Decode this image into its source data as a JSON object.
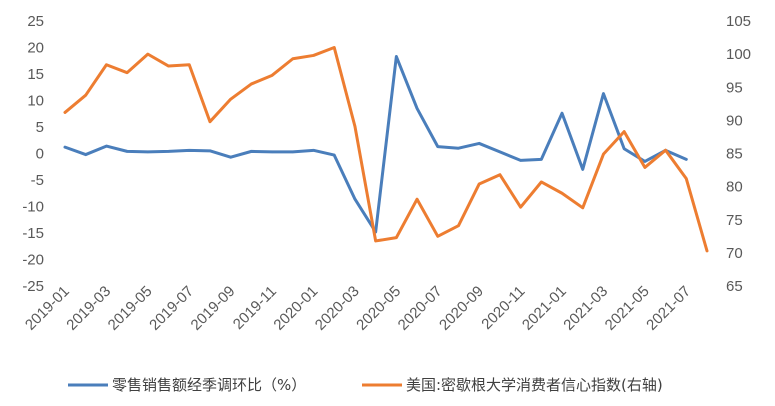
{
  "colors": {
    "series_left": "#4A7EBB",
    "series_right": "#ED7D31",
    "tick_text": "#595959",
    "legend_text": "#404040"
  },
  "chart_data": {
    "type": "line",
    "x": [
      "2019-01",
      "2019-02",
      "2019-03",
      "2019-04",
      "2019-05",
      "2019-06",
      "2019-07",
      "2019-08",
      "2019-09",
      "2019-10",
      "2019-11",
      "2019-12",
      "2020-01",
      "2020-02",
      "2020-03",
      "2020-04",
      "2020-05",
      "2020-06",
      "2020-07",
      "2020-08",
      "2020-09",
      "2020-10",
      "2020-11",
      "2020-12",
      "2021-01",
      "2021-02",
      "2021-03",
      "2021-04",
      "2021-05",
      "2021-06",
      "2021-07",
      "2021-08"
    ],
    "x_tick_labels": [
      "2019-01",
      "2019-03",
      "2019-05",
      "2019-07",
      "2019-09",
      "2019-11",
      "2020-01",
      "2020-03",
      "2020-05",
      "2020-07",
      "2020-09",
      "2020-11",
      "2021-01",
      "2021-03",
      "2021-05",
      "2021-07"
    ],
    "y_left": {
      "min": -25,
      "max": 25,
      "step": 5,
      "ticks": [
        "25",
        "20",
        "15",
        "10",
        "5",
        "0",
        "-5",
        "-10",
        "-15",
        "-20",
        "-25"
      ]
    },
    "y_right": {
      "min": 65,
      "max": 105,
      "step": 5,
      "ticks": [
        "105",
        "100",
        "95",
        "90",
        "85",
        "80",
        "75",
        "70",
        "65"
      ]
    },
    "series": [
      {
        "name": "零售销售额经季调环比（%）",
        "axis": "left",
        "values": [
          1.2,
          -0.2,
          1.4,
          0.4,
          0.3,
          0.4,
          0.6,
          0.5,
          -0.7,
          0.4,
          0.3,
          0.3,
          0.6,
          -0.3,
          -8.6,
          -14.8,
          18.3,
          8.5,
          1.3,
          1.0,
          1.9,
          0.3,
          -1.3,
          -1.1,
          7.6,
          -3.0,
          11.3,
          0.9,
          -1.5,
          0.6,
          -1.1,
          null
        ]
      },
      {
        "name": "美国:密歇根大学消费者信心指数(右轴)",
        "axis": "right",
        "values": [
          91.2,
          93.8,
          98.4,
          97.2,
          100.0,
          98.2,
          98.4,
          89.8,
          93.2,
          95.5,
          96.8,
          99.3,
          99.8,
          101.0,
          89.1,
          71.8,
          72.3,
          78.1,
          72.5,
          74.1,
          80.4,
          81.8,
          76.9,
          80.7,
          79.0,
          76.8,
          84.9,
          88.3,
          82.9,
          85.5,
          81.2,
          70.3
        ]
      }
    ],
    "legend": "bottom"
  }
}
